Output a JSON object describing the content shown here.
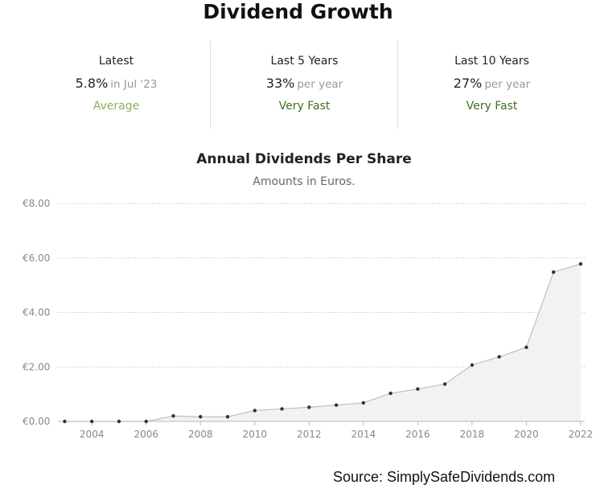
{
  "header": {
    "title": "Dividend Growth"
  },
  "stats": [
    {
      "label": "Latest",
      "value": "5.8%",
      "suffix": "in Jul '23",
      "rating": "Average",
      "rating_color": "#8fb05a"
    },
    {
      "label": "Last 5 Years",
      "value": "33%",
      "suffix": "per year",
      "rating": "Very Fast",
      "rating_color": "#3f6e23"
    },
    {
      "label": "Last 10 Years",
      "value": "27%",
      "suffix": "per year",
      "rating": "Very Fast",
      "rating_color": "#3f6e23"
    }
  ],
  "chart_data": {
    "type": "area",
    "title": "Annual Dividends Per Share",
    "subtitle": "Amounts in Euros.",
    "xlabel": "",
    "ylabel": "",
    "x": [
      2003,
      2004,
      2005,
      2006,
      2007,
      2008,
      2009,
      2010,
      2011,
      2012,
      2013,
      2014,
      2015,
      2016,
      2017,
      2018,
      2019,
      2020,
      2021,
      2022
    ],
    "values": [
      0.0,
      0.0,
      0.0,
      0.0,
      0.2,
      0.17,
      0.17,
      0.4,
      0.46,
      0.52,
      0.6,
      0.68,
      1.03,
      1.19,
      1.37,
      2.07,
      2.37,
      2.72,
      5.48,
      5.78
    ],
    "ylim": [
      0,
      8
    ],
    "y_ticks": [
      0,
      2,
      4,
      6,
      8
    ],
    "y_tick_labels": [
      "€0.00",
      "€2.00",
      "€4.00",
      "€6.00",
      "€8.00"
    ],
    "x_ticks": [
      2004,
      2006,
      2008,
      2010,
      2012,
      2014,
      2016,
      2018,
      2020,
      2022
    ],
    "x_tick_labels": [
      "2004",
      "2006",
      "2008",
      "2010",
      "2012",
      "2014",
      "2016",
      "2018",
      "2020",
      "2022"
    ],
    "grid": true,
    "line_color": "#bfbfbf",
    "fill_color": "#f2f2f2",
    "marker_color": "#333333"
  },
  "footer": {
    "source": "Source: SimplySafeDividends.com"
  }
}
